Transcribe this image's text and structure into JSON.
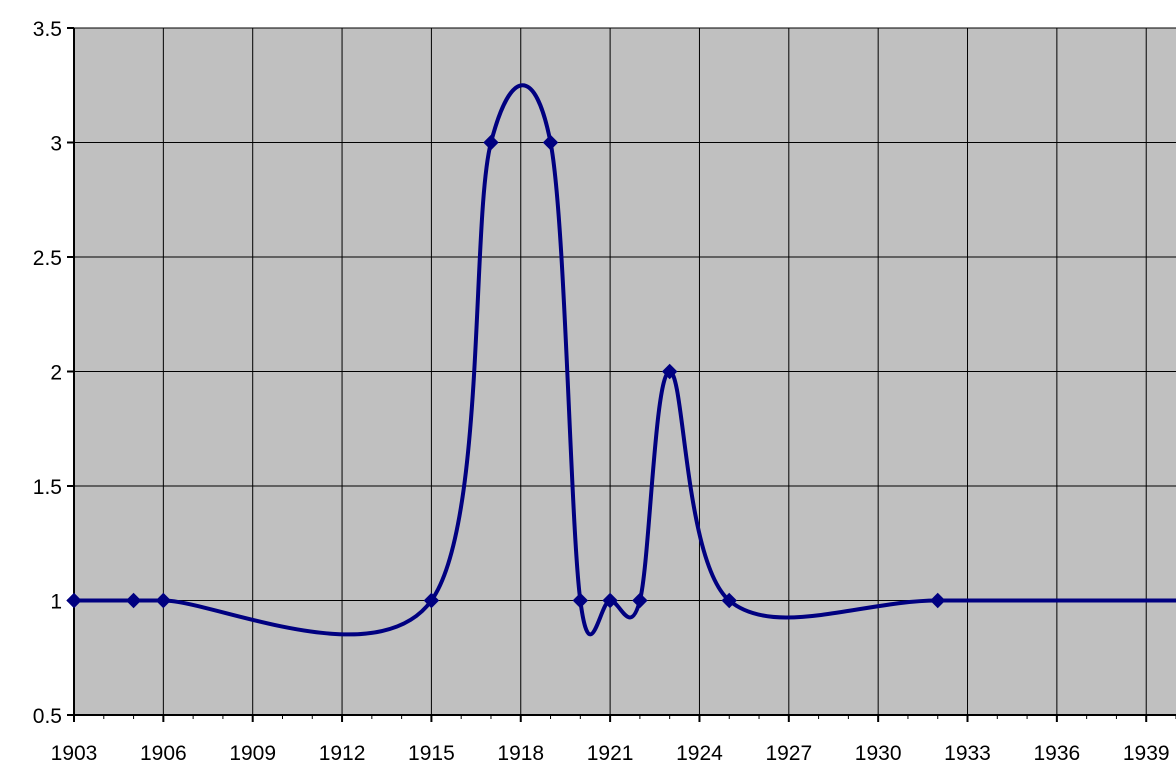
{
  "chart_data": {
    "type": "line",
    "title": "",
    "xlabel": "",
    "ylabel": "",
    "xlim": [
      1903,
      1940
    ],
    "ylim": [
      0.5,
      3.5
    ],
    "x_ticks": [
      "1903",
      "1906",
      "1909",
      "1912",
      "1915",
      "1918",
      "1921",
      "1924",
      "1927",
      "1930",
      "1933",
      "1936",
      "1939"
    ],
    "y_ticks": [
      "0.5",
      "1",
      "1.5",
      "2",
      "2.5",
      "3",
      "3.5"
    ],
    "grid": true,
    "legend": "none",
    "smoothed": true,
    "series": [
      {
        "color": "#000080",
        "points": [
          {
            "x": 1903,
            "y": 1
          },
          {
            "x": 1905,
            "y": 1
          },
          {
            "x": 1906,
            "y": 1
          },
          {
            "x": 1915,
            "y": 1
          },
          {
            "x": 1917,
            "y": 3
          },
          {
            "x": 1919,
            "y": 3
          },
          {
            "x": 1920,
            "y": 1
          },
          {
            "x": 1921,
            "y": 1
          },
          {
            "x": 1922,
            "y": 1
          },
          {
            "x": 1923,
            "y": 2
          },
          {
            "x": 1925,
            "y": 1
          },
          {
            "x": 1932,
            "y": 1
          },
          {
            "x": 1940,
            "y": 1
          }
        ],
        "markers": [
          1903,
          1905,
          1906,
          1915,
          1917,
          1919,
          1920,
          1921,
          1922,
          1923,
          1925,
          1932
        ]
      }
    ],
    "colors": {
      "plot_background": "#c0c0c0",
      "grid": "#000000",
      "line": "#000080"
    }
  }
}
